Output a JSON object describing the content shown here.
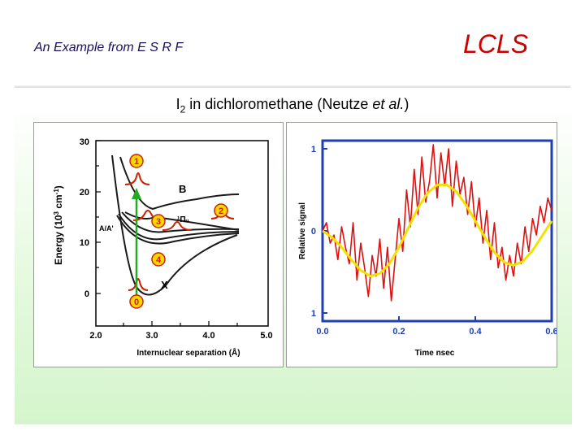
{
  "header": {
    "subtitle": "An Example from E S R F",
    "logo": "LCLS"
  },
  "title": {
    "pre": "I",
    "sub": "2",
    "mid": " in dichloromethane (Neutze ",
    "em": "et al.",
    "post": ")"
  },
  "left_figure": {
    "type": "diagram",
    "ylabel": "Energy (10³ cm⁻¹)",
    "ylabel_main": "Energy (10",
    "ylabel_sup1": "3",
    "ylabel_mid": " cm",
    "ylabel_sup2": "-1",
    "ylabel_end": ")",
    "xlabel": "Internuclear separation (Å)",
    "yticks": [
      "30",
      "20",
      "10",
      "0"
    ],
    "xticks": [
      "2.0",
      "3.0",
      "4.0",
      "5.0"
    ],
    "curve_labels": {
      "B": "B",
      "pi": "¹Πᵤ",
      "aa": "A/A'",
      "X": "X"
    },
    "markers": [
      "1",
      "3",
      "2",
      "4",
      "0"
    ],
    "colors": {
      "axis": "#000000",
      "curve": "#1a1a1a",
      "wavepacket": "#cc2200",
      "marker": "#ffd700",
      "arrow": "#22aa22"
    }
  },
  "chart_data": {
    "type": "line",
    "title": "",
    "xlabel": "Time nsec",
    "ylabel": "Relative signal",
    "xlim": [
      0,
      0.6
    ],
    "ylim": [
      -1,
      1
    ],
    "xticks": [
      "0.0",
      "0.2",
      "0.4",
      "0.6"
    ],
    "yticks": [
      "1",
      "0",
      "1"
    ],
    "series": [
      {
        "color": "#dd1111",
        "x": [
          0.0,
          0.01,
          0.02,
          0.03,
          0.04,
          0.05,
          0.06,
          0.07,
          0.08,
          0.09,
          0.1,
          0.11,
          0.12,
          0.13,
          0.14,
          0.15,
          0.16,
          0.17,
          0.18,
          0.19,
          0.2,
          0.21,
          0.22,
          0.23,
          0.24,
          0.25,
          0.26,
          0.27,
          0.28,
          0.29,
          0.3,
          0.31,
          0.32,
          0.33,
          0.34,
          0.35,
          0.36,
          0.37,
          0.38,
          0.39,
          0.4,
          0.41,
          0.42,
          0.43,
          0.44,
          0.45,
          0.46,
          0.47,
          0.48,
          0.49,
          0.5,
          0.51,
          0.52,
          0.53,
          0.54,
          0.55,
          0.56,
          0.57,
          0.58,
          0.59,
          0.6
        ],
        "y": [
          0.0,
          0.1,
          -0.15,
          -0.05,
          -0.35,
          0.05,
          -0.2,
          -0.4,
          0.1,
          -0.6,
          -0.15,
          -0.45,
          -0.8,
          -0.3,
          -0.55,
          -0.1,
          -0.7,
          -0.2,
          -0.85,
          -0.35,
          0.15,
          -0.25,
          0.5,
          0.05,
          0.75,
          0.2,
          0.9,
          0.35,
          0.6,
          1.05,
          0.4,
          0.95,
          0.55,
          1.0,
          0.3,
          0.85,
          0.45,
          0.65,
          0.2,
          0.6,
          0.05,
          0.4,
          -0.15,
          0.25,
          -0.35,
          0.1,
          -0.45,
          -0.2,
          -0.6,
          -0.3,
          -0.55,
          -0.15,
          -0.4,
          0.05,
          -0.25,
          0.15,
          -0.05,
          0.3,
          0.1,
          0.4,
          0.25
        ]
      },
      {
        "color": "#f3e100",
        "x": [
          0.0,
          0.025,
          0.05,
          0.075,
          0.1,
          0.125,
          0.15,
          0.175,
          0.2,
          0.225,
          0.25,
          0.275,
          0.3,
          0.325,
          0.35,
          0.375,
          0.4,
          0.425,
          0.45,
          0.475,
          0.5,
          0.525,
          0.55,
          0.575,
          0.6
        ],
        "y": [
          0.0,
          -0.08,
          -0.2,
          -0.35,
          -0.48,
          -0.55,
          -0.52,
          -0.4,
          -0.2,
          0.04,
          0.28,
          0.46,
          0.56,
          0.56,
          0.48,
          0.32,
          0.12,
          -0.08,
          -0.26,
          -0.38,
          -0.42,
          -0.37,
          -0.24,
          -0.06,
          0.12
        ]
      }
    ]
  }
}
